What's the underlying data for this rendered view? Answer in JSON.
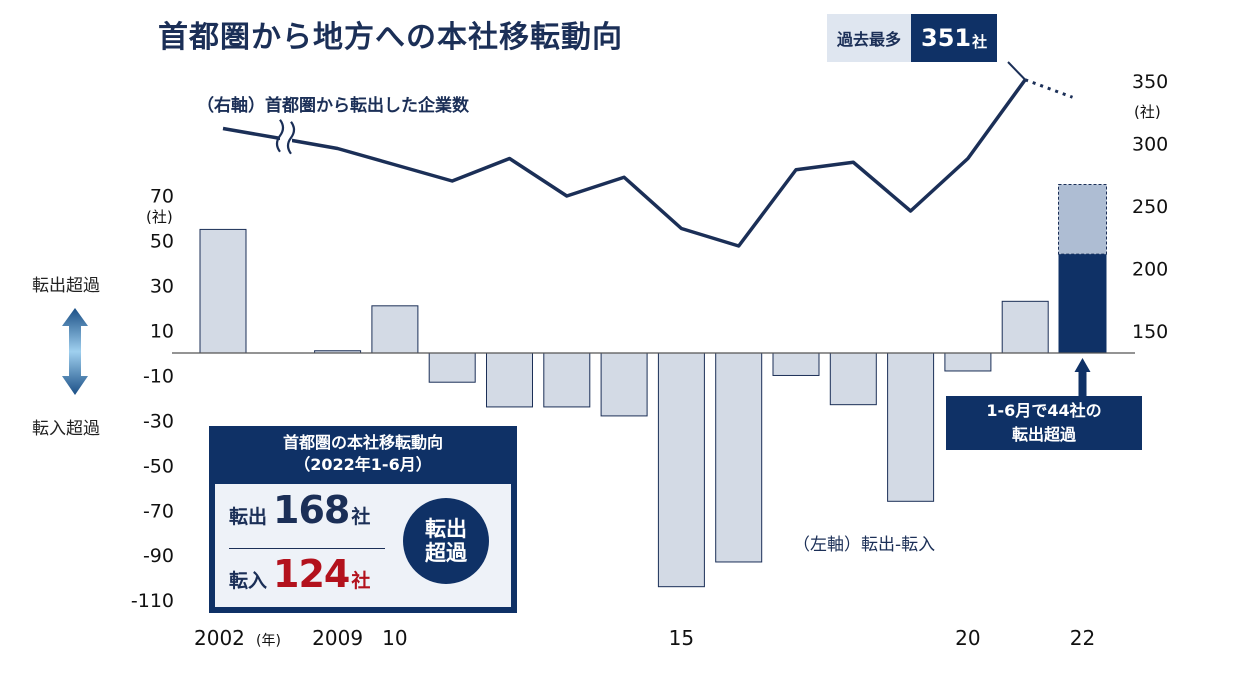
{
  "title": "首都圏から地方への本社移転動向",
  "peak_badge": {
    "label": "過去最多",
    "value": "351",
    "unit": "社"
  },
  "side_labels": {
    "outflow": "転出超過",
    "inflow": "転入超過"
  },
  "summary_box": {
    "title_line1": "首都圏の本社移転動向",
    "title_line2": "（2022年1-6月）",
    "outflow_label": "転出",
    "outflow_value": "168",
    "outflow_unit": "社",
    "inflow_label": "転入",
    "inflow_value": "124",
    "inflow_unit": "社",
    "badge_line1": "転出",
    "badge_line2": "超過"
  },
  "note_box": {
    "line1": "1-6月で44社の",
    "line2": "転出超過"
  },
  "colors": {
    "navy": "#0f3166",
    "bar_fill": "#d3dae5",
    "bar_stroke": "#1b2f57",
    "inflow_red": "#b3121d",
    "partial_light": "#aebdd3"
  },
  "chart_data": {
    "type": "bar+line",
    "x_tick_labels": [
      {
        "text": "2002",
        "year": 2002
      },
      {
        "text": "(年)",
        "year": 2002,
        "suffix": true
      },
      {
        "text": "2009",
        "year": 2009
      },
      {
        "text": "10",
        "year": 2010
      },
      {
        "text": "15",
        "year": 2015
      },
      {
        "text": "20",
        "year": 2020
      },
      {
        "text": "22",
        "year": 2022
      }
    ],
    "left_axis": {
      "ticks": [
        70,
        50,
        30,
        10,
        -10,
        -30,
        -50,
        -70,
        -90,
        -110
      ],
      "unit": "(社)",
      "range": [
        -110,
        70
      ]
    },
    "right_axis": {
      "ticks": [
        350,
        300,
        250,
        200,
        150
      ],
      "unit": "(社)",
      "range": [
        130,
        360
      ]
    },
    "bars": {
      "name": "（左軸）転出-転入",
      "points": [
        {
          "year": 2002,
          "value": 55
        },
        {
          "year": 2008,
          "value": 0
        },
        {
          "year": 2009,
          "value": 1
        },
        {
          "year": 2010,
          "value": 21
        },
        {
          "year": 2011,
          "value": -13
        },
        {
          "year": 2012,
          "value": -24
        },
        {
          "year": 2013,
          "value": -24
        },
        {
          "year": 2014,
          "value": -28
        },
        {
          "year": 2015,
          "value": -104
        },
        {
          "year": 2016,
          "value": -93
        },
        {
          "year": 2017,
          "value": -10
        },
        {
          "year": 2018,
          "value": -23
        },
        {
          "year": 2019,
          "value": -66
        },
        {
          "year": 2020,
          "value": -8
        },
        {
          "year": 2021,
          "value": 23
        }
      ],
      "partial": {
        "year": 2022,
        "h1_value": 44,
        "projected_total": 75
      }
    },
    "line": {
      "name": "（右軸）首都圏から転出した企業数",
      "axis_break_year": 2003,
      "points": [
        {
          "year": 2002,
          "value": 312
        },
        {
          "year": 2003,
          "value": 303
        },
        {
          "year": 2009,
          "value": 296
        },
        {
          "year": 2010,
          "value": 283
        },
        {
          "year": 2011,
          "value": 270
        },
        {
          "year": 2012,
          "value": 288
        },
        {
          "year": 2013,
          "value": 258
        },
        {
          "year": 2014,
          "value": 273
        },
        {
          "year": 2015,
          "value": 232
        },
        {
          "year": 2016,
          "value": 218
        },
        {
          "year": 2017,
          "value": 279
        },
        {
          "year": 2018,
          "value": 285
        },
        {
          "year": 2019,
          "value": 246
        },
        {
          "year": 2020,
          "value": 288
        },
        {
          "year": 2021,
          "value": 351
        }
      ],
      "projection": {
        "from_year": 2021,
        "to_year": 2022,
        "to_value": 337
      }
    },
    "grid": false
  }
}
